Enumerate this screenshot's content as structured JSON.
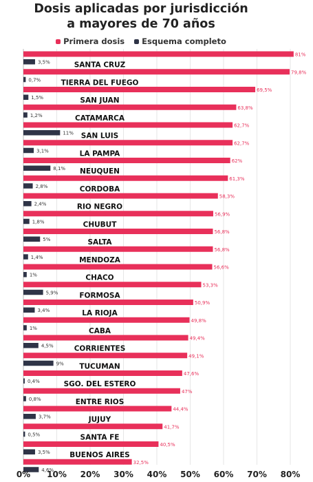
{
  "chart_data": {
    "type": "bar",
    "title": "Dosis aplicadas por jurisdicción a mayores de 70 años",
    "xlabel": "",
    "ylabel": "",
    "xlim": [
      0,
      80
    ],
    "x_ticks": [
      "0%",
      "10%",
      "20%",
      "30%",
      "40%",
      "50%",
      "60%",
      "70%",
      "80%"
    ],
    "legend_position": "top",
    "grid": true,
    "series": [
      {
        "name": "Primera dosis",
        "color": "#e8305a"
      },
      {
        "name": "Esquema completo",
        "color": "#2f3447"
      }
    ],
    "rows": [
      {
        "primera": 81,
        "primera_label": "81%",
        "completo": 3.5,
        "completo_label": "3,5%",
        "name": "SANTA CRUZ"
      },
      {
        "primera": 79.8,
        "primera_label": "79,8%",
        "completo": 0.7,
        "completo_label": "0,7%",
        "name": "TIERRA DEL FUEGO"
      },
      {
        "primera": 69.5,
        "primera_label": "69,5%",
        "completo": 1.5,
        "completo_label": "1,5%",
        "name": "SAN JUAN"
      },
      {
        "primera": 63.8,
        "primera_label": "63,8%",
        "completo": 1.2,
        "completo_label": "1,2%",
        "name": "CATAMARCA"
      },
      {
        "primera": 62.7,
        "primera_label": "62,7%",
        "completo": 11,
        "completo_label": "11%",
        "name": "SAN LUIS"
      },
      {
        "primera": 62.7,
        "primera_label": "62,7%",
        "completo": 3.1,
        "completo_label": "3,1%",
        "name": "LA PAMPA"
      },
      {
        "primera": 62,
        "primera_label": "62%",
        "completo": 8.1,
        "completo_label": "8,1%",
        "name": "NEUQUEN"
      },
      {
        "primera": 61.3,
        "primera_label": "61,3%",
        "completo": 2.8,
        "completo_label": "2,8%",
        "name": "CORDOBA"
      },
      {
        "primera": 58.3,
        "primera_label": "58,3%",
        "completo": 2.4,
        "completo_label": "2,4%",
        "name": "RIO NEGRO"
      },
      {
        "primera": 56.9,
        "primera_label": "56,9%",
        "completo": 1.8,
        "completo_label": "1,8%",
        "name": "CHUBUT"
      },
      {
        "primera": 56.8,
        "primera_label": "56,8%",
        "completo": 5,
        "completo_label": "5%",
        "name": "SALTA"
      },
      {
        "primera": 56.8,
        "primera_label": "56,8%",
        "completo": 1.4,
        "completo_label": "1,4%",
        "name": "MENDOZA"
      },
      {
        "primera": 56.6,
        "primera_label": "56,6%",
        "completo": 1,
        "completo_label": "1%",
        "name": "CHACO"
      },
      {
        "primera": 53.3,
        "primera_label": "53,3%",
        "completo": 5.9,
        "completo_label": "5,9%",
        "name": "FORMOSA"
      },
      {
        "primera": 50.9,
        "primera_label": "50,9%",
        "completo": 3.4,
        "completo_label": "3,4%",
        "name": "LA RIOJA"
      },
      {
        "primera": 49.8,
        "primera_label": "49,8%",
        "completo": 1,
        "completo_label": "1%",
        "name": "CABA"
      },
      {
        "primera": 49.4,
        "primera_label": "49,4%",
        "completo": 4.5,
        "completo_label": "4,5%",
        "name": "CORRIENTES"
      },
      {
        "primera": 49.1,
        "primera_label": "49,1%",
        "completo": 9,
        "completo_label": "9%",
        "name": "TUCUMAN"
      },
      {
        "primera": 47.6,
        "primera_label": "47,6%",
        "completo": 0.4,
        "completo_label": "0,4%",
        "name": "SGO. DEL ESTERO"
      },
      {
        "primera": 47,
        "primera_label": "47%",
        "completo": 0.8,
        "completo_label": "0,8%",
        "name": "ENTRE RIOS"
      },
      {
        "primera": 44.4,
        "primera_label": "44,4%",
        "completo": 3.7,
        "completo_label": "3,7%",
        "name": "JUJUY"
      },
      {
        "primera": 41.7,
        "primera_label": "41,7%",
        "completo": 0.5,
        "completo_label": "0,5%",
        "name": "SANTA FE"
      },
      {
        "primera": 40.5,
        "primera_label": "40,5%",
        "completo": 3.5,
        "completo_label": "3,5%",
        "name": "BUENOS AIRES"
      },
      {
        "primera": 32.5,
        "primera_label": "32,5%",
        "completo": 4.6,
        "completo_label": "4,6%",
        "name": ""
      }
    ]
  },
  "title_line1": "Dosis aplicadas por jurisdicción",
  "title_line2": "a mayores de 70 años",
  "legend": {
    "primera": "Primera dosis",
    "completo": "Esquema completo"
  }
}
